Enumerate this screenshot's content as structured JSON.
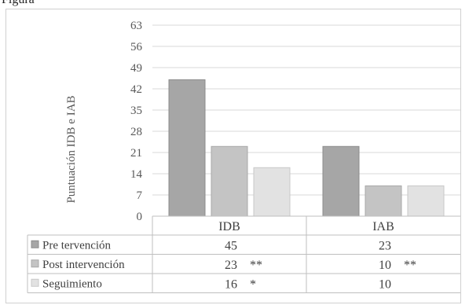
{
  "chart_data": {
    "type": "bar",
    "ylabel": "Puntuación  IDB e IAB",
    "ylim": [
      0,
      63
    ],
    "yticks": [
      0,
      7,
      14,
      21,
      28,
      35,
      42,
      49,
      56,
      63
    ],
    "categories": [
      "IDB",
      "IAB"
    ],
    "series": [
      {
        "name": "Pre tervención",
        "values": [
          45,
          23
        ],
        "color": "#a6a6a6",
        "cells": [
          "45",
          "23"
        ]
      },
      {
        "name": "Post intervención",
        "values": [
          23,
          10
        ],
        "color": "#c4c4c4",
        "cells": [
          "23    **",
          "10    **"
        ]
      },
      {
        "name": "Seguimiento",
        "values": [
          16,
          10
        ],
        "color": "#e2e2e2",
        "cells": [
          "16    *",
          "10"
        ]
      }
    ],
    "grid": true,
    "legend": "data-table"
  },
  "page": {
    "fragment": "Figura"
  }
}
